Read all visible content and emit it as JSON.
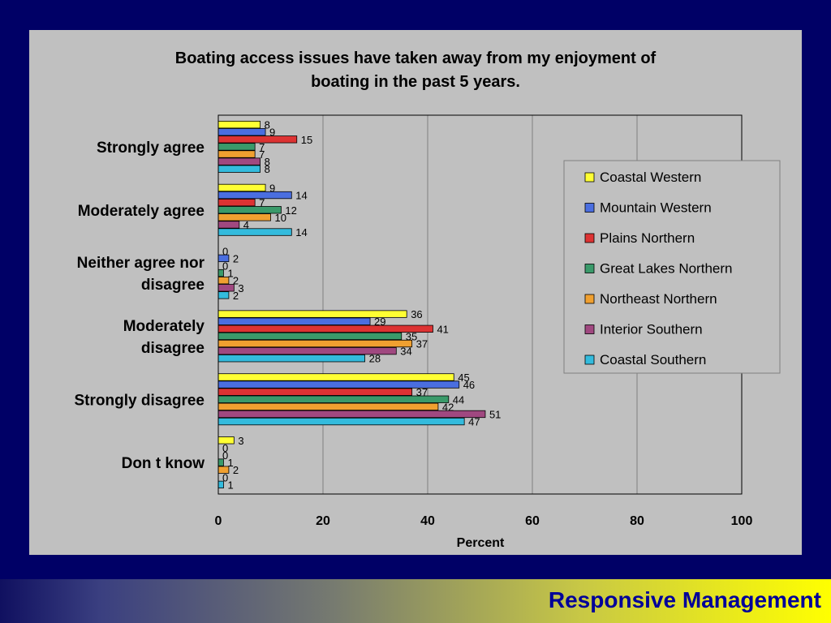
{
  "chart_data": {
    "type": "bar",
    "orientation": "horizontal",
    "title": "Boating access issues have taken away from my enjoyment of boating in the past 5 years.",
    "title_lines": [
      "Boating access issues have taken away from my enjoyment of",
      "boating in the past 5 years."
    ],
    "xlabel": "Percent",
    "ylabel": "",
    "xlim": [
      0,
      100
    ],
    "xticks": [
      0,
      20,
      40,
      60,
      80,
      100
    ],
    "grid": "vertical",
    "legend_position": "right",
    "categories": [
      "Strongly agree",
      "Moderately agree",
      "Neither agree nor disagree",
      "Moderately disagree",
      "Strongly disagree",
      "Don t know"
    ],
    "category_lines": [
      [
        "Strongly agree"
      ],
      [
        "Moderately agree"
      ],
      [
        "Neither agree nor",
        "disagree"
      ],
      [
        "Moderately",
        "disagree"
      ],
      [
        "Strongly disagree"
      ],
      [
        "Don t know"
      ]
    ],
    "series": [
      {
        "name": "Coastal Western",
        "color": "#ffff33",
        "values": [
          8,
          9,
          0,
          36,
          45,
          3
        ]
      },
      {
        "name": "Mountain Western",
        "color": "#4a6ee0",
        "values": [
          9,
          14,
          2,
          29,
          46,
          0
        ]
      },
      {
        "name": "Plains Northern",
        "color": "#dd3333",
        "values": [
          15,
          7,
          0,
          41,
          37,
          0
        ]
      },
      {
        "name": "Great Lakes Northern",
        "color": "#3a9a6a",
        "values": [
          7,
          12,
          1,
          35,
          44,
          1
        ]
      },
      {
        "name": "Northeast Northern",
        "color": "#f0a030",
        "values": [
          7,
          10,
          2,
          37,
          42,
          2
        ]
      },
      {
        "name": "Interior Southern",
        "color": "#a04880",
        "values": [
          8,
          4,
          3,
          34,
          51,
          0
        ]
      },
      {
        "name": "Coastal Southern",
        "color": "#33bbdd",
        "values": [
          8,
          14,
          2,
          28,
          47,
          1
        ]
      }
    ]
  },
  "footer": {
    "brand": "Responsive Management"
  }
}
